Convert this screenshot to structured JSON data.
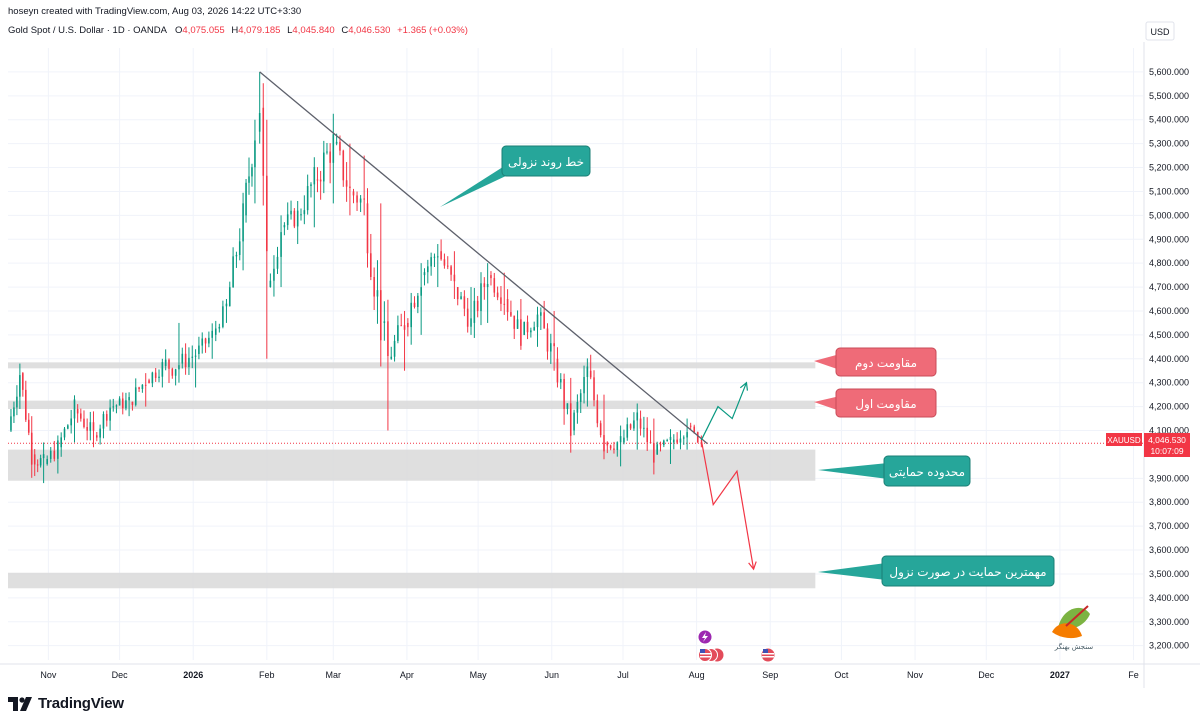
{
  "header": {
    "credit": "hoseyn created with TradingView.com, Aug 03, 2026 14:22 UTC+3:30",
    "symbol": "Gold Spot / U.S. Dollar · 1D · OANDA",
    "open_label": "O",
    "open": "4,075.055",
    "high_label": "H",
    "high": "4,079.185",
    "low_label": "L",
    "low": "4,045.840",
    "close_label": "C",
    "close": "4,046.530",
    "change": "+1.365 (+0.03%)"
  },
  "axis": {
    "currency": "USD",
    "y_ticks": [
      "5,600.000",
      "5,500.000",
      "5,400.000",
      "5,300.000",
      "5,200.000",
      "5,100.000",
      "5,000.000",
      "4,900.000",
      "4,800.000",
      "4,700.000",
      "4,600.000",
      "4,500.000",
      "4,400.000",
      "4,300.000",
      "4,200.000",
      "4,100.000",
      "3,900.000",
      "3,800.000",
      "3,700.000",
      "3,600.000",
      "3,500.000",
      "3,400.000",
      "3,300.000",
      "3,200.000"
    ],
    "x_ticks": [
      "Nov",
      "Dec",
      "2026",
      "Feb",
      "Mar",
      "Apr",
      "May",
      "Jun",
      "Jul",
      "Aug",
      "Sep",
      "Oct",
      "Nov",
      "Dec",
      "2027",
      "Fe"
    ]
  },
  "price_tag": {
    "symbol": "XAUUSD",
    "price": "4,046.530",
    "countdown": "10:07:09"
  },
  "annotations": {
    "trendline": "خط روند نزولی",
    "resistance2": "مقاومت دوم",
    "resistance1": "مقاومت اول",
    "support_zone": "محدوده حمایتی",
    "strongest_support": "مهمترین حمایت در صورت نزول"
  },
  "watermark": "سنجش بهنگر",
  "footer": {
    "brand": "TradingView"
  },
  "colors": {
    "up": "#089981",
    "down": "#f23645",
    "zone": "#d9d9d9",
    "callout_teal": "#26a69a",
    "callout_red": "#ef6b78"
  },
  "chart_data": {
    "type": "candlestick",
    "symbol": "XAUUSD",
    "timeframe": "1D",
    "x_range": [
      "2025-10-15",
      "2027-02-05"
    ],
    "ylim": [
      3140,
      5700
    ],
    "last_price": 4046.53,
    "series": [
      {
        "date": "2025-10-15",
        "o": 4020,
        "h": 4120,
        "l": 3980,
        "c": 4100
      },
      {
        "date": "2025-10-20",
        "o": 4260,
        "h": 4380,
        "l": 4190,
        "c": 4340
      },
      {
        "date": "2025-10-25",
        "o": 4110,
        "h": 4160,
        "l": 3960,
        "c": 4000
      },
      {
        "date": "2025-10-30",
        "o": 3990,
        "h": 4050,
        "l": 3880,
        "c": 3960
      },
      {
        "date": "2025-11-05",
        "o": 3970,
        "h": 4060,
        "l": 3920,
        "c": 4030
      },
      {
        "date": "2025-11-12",
        "o": 4080,
        "h": 4230,
        "l": 4050,
        "c": 4190
      },
      {
        "date": "2025-11-20",
        "o": 4110,
        "h": 4180,
        "l": 4030,
        "c": 4080
      },
      {
        "date": "2025-11-27",
        "o": 4120,
        "h": 4230,
        "l": 4100,
        "c": 4200
      },
      {
        "date": "2025-12-05",
        "o": 4190,
        "h": 4260,
        "l": 4160,
        "c": 4220
      },
      {
        "date": "2025-12-12",
        "o": 4230,
        "h": 4340,
        "l": 4200,
        "c": 4310
      },
      {
        "date": "2025-12-19",
        "o": 4310,
        "h": 4400,
        "l": 4280,
        "c": 4370
      },
      {
        "date": "2025-12-26",
        "o": 4420,
        "h": 4550,
        "l": 4300,
        "c": 4380
      },
      {
        "date": "2026-01-02",
        "o": 4330,
        "h": 4440,
        "l": 4280,
        "c": 4420
      },
      {
        "date": "2026-01-09",
        "o": 4450,
        "h": 4520,
        "l": 4400,
        "c": 4500
      },
      {
        "date": "2026-01-15",
        "o": 4580,
        "h": 4650,
        "l": 4550,
        "c": 4620
      },
      {
        "date": "2026-01-22",
        "o": 4800,
        "h": 5050,
        "l": 4770,
        "c": 5000
      },
      {
        "date": "2026-01-27",
        "o": 5100,
        "h": 5400,
        "l": 5050,
        "c": 5350
      },
      {
        "date": "2026-01-29",
        "o": 5400,
        "h": 5600,
        "l": 5300,
        "c": 5450
      },
      {
        "date": "2026-02-01",
        "o": 5300,
        "h": 5400,
        "l": 4400,
        "c": 4700
      },
      {
        "date": "2026-02-07",
        "o": 4800,
        "h": 5000,
        "l": 4700,
        "c": 4950
      },
      {
        "date": "2026-02-14",
        "o": 4950,
        "h": 5060,
        "l": 4880,
        "c": 5000
      },
      {
        "date": "2026-02-21",
        "o": 5000,
        "h": 5200,
        "l": 4950,
        "c": 5150
      },
      {
        "date": "2026-03-01",
        "o": 5150,
        "h": 5420,
        "l": 5050,
        "c": 5300
      },
      {
        "date": "2026-03-08",
        "o": 5250,
        "h": 5300,
        "l": 5000,
        "c": 5100
      },
      {
        "date": "2026-03-14",
        "o": 5150,
        "h": 5250,
        "l": 5000,
        "c": 5050
      },
      {
        "date": "2026-03-21",
        "o": 5000,
        "h": 5050,
        "l": 4500,
        "c": 4550
      },
      {
        "date": "2026-03-24",
        "o": 4450,
        "h": 4500,
        "l": 4100,
        "c": 4400
      },
      {
        "date": "2026-03-31",
        "o": 4400,
        "h": 4600,
        "l": 4350,
        "c": 4550
      },
      {
        "date": "2026-04-07",
        "o": 4550,
        "h": 4800,
        "l": 4500,
        "c": 4750
      },
      {
        "date": "2026-04-14",
        "o": 4750,
        "h": 4880,
        "l": 4700,
        "c": 4850
      },
      {
        "date": "2026-04-21",
        "o": 4800,
        "h": 4850,
        "l": 4650,
        "c": 4700
      },
      {
        "date": "2026-04-28",
        "o": 4650,
        "h": 4700,
        "l": 4500,
        "c": 4550
      },
      {
        "date": "2026-05-05",
        "o": 4600,
        "h": 4800,
        "l": 4550,
        "c": 4750
      },
      {
        "date": "2026-05-12",
        "o": 4720,
        "h": 4760,
        "l": 4600,
        "c": 4650
      },
      {
        "date": "2026-05-19",
        "o": 4600,
        "h": 4650,
        "l": 4450,
        "c": 4500
      },
      {
        "date": "2026-05-26",
        "o": 4500,
        "h": 4600,
        "l": 4450,
        "c": 4580
      },
      {
        "date": "2026-06-02",
        "o": 4550,
        "h": 4600,
        "l": 4350,
        "c": 4400
      },
      {
        "date": "2026-06-09",
        "o": 4300,
        "h": 4320,
        "l": 4050,
        "c": 4100
      },
      {
        "date": "2026-06-16",
        "o": 4250,
        "h": 4400,
        "l": 4200,
        "c": 4350
      },
      {
        "date": "2026-06-23",
        "o": 4200,
        "h": 4250,
        "l": 4000,
        "c": 4050
      },
      {
        "date": "2026-06-30",
        "o": 4000,
        "h": 4100,
        "l": 3950,
        "c": 4050
      },
      {
        "date": "2026-07-07",
        "o": 4050,
        "h": 4200,
        "l": 4020,
        "c": 4150
      },
      {
        "date": "2026-07-14",
        "o": 4100,
        "h": 4150,
        "l": 3980,
        "c": 4000
      },
      {
        "date": "2026-07-21",
        "o": 4000,
        "h": 4080,
        "l": 3960,
        "c": 4050
      },
      {
        "date": "2026-07-28",
        "o": 4050,
        "h": 4150,
        "l": 4020,
        "c": 4120
      },
      {
        "date": "2026-08-03",
        "o": 4075.055,
        "h": 4079.185,
        "l": 4045.84,
        "c": 4046.53
      }
    ],
    "zones": [
      {
        "name": "resistance2",
        "from": 4360,
        "to": 4385,
        "end": "2026-09-20"
      },
      {
        "name": "resistance1",
        "from": 4190,
        "to": 4225,
        "end": "2026-09-20"
      },
      {
        "name": "support",
        "from": 3890,
        "to": 4020,
        "end": "2026-09-20"
      },
      {
        "name": "strongest_support",
        "from": 3440,
        "to": 3505,
        "end": "2026-09-20"
      }
    ],
    "trendline": {
      "from": {
        "date": "2026-01-29",
        "price": 5600
      },
      "to": {
        "date": "2026-08-03",
        "price": 4070
      }
    },
    "scenario_up": [
      {
        "date": "2026-08-03",
        "price": 4060
      },
      {
        "date": "2026-08-10",
        "price": 4200
      },
      {
        "date": "2026-08-16",
        "price": 4150
      },
      {
        "date": "2026-08-22",
        "price": 4300
      }
    ],
    "scenario_down": [
      {
        "date": "2026-08-03",
        "price": 4060
      },
      {
        "date": "2026-08-08",
        "price": 3790
      },
      {
        "date": "2026-08-18",
        "price": 3930
      },
      {
        "date": "2026-08-25",
        "price": 3520
      }
    ]
  }
}
